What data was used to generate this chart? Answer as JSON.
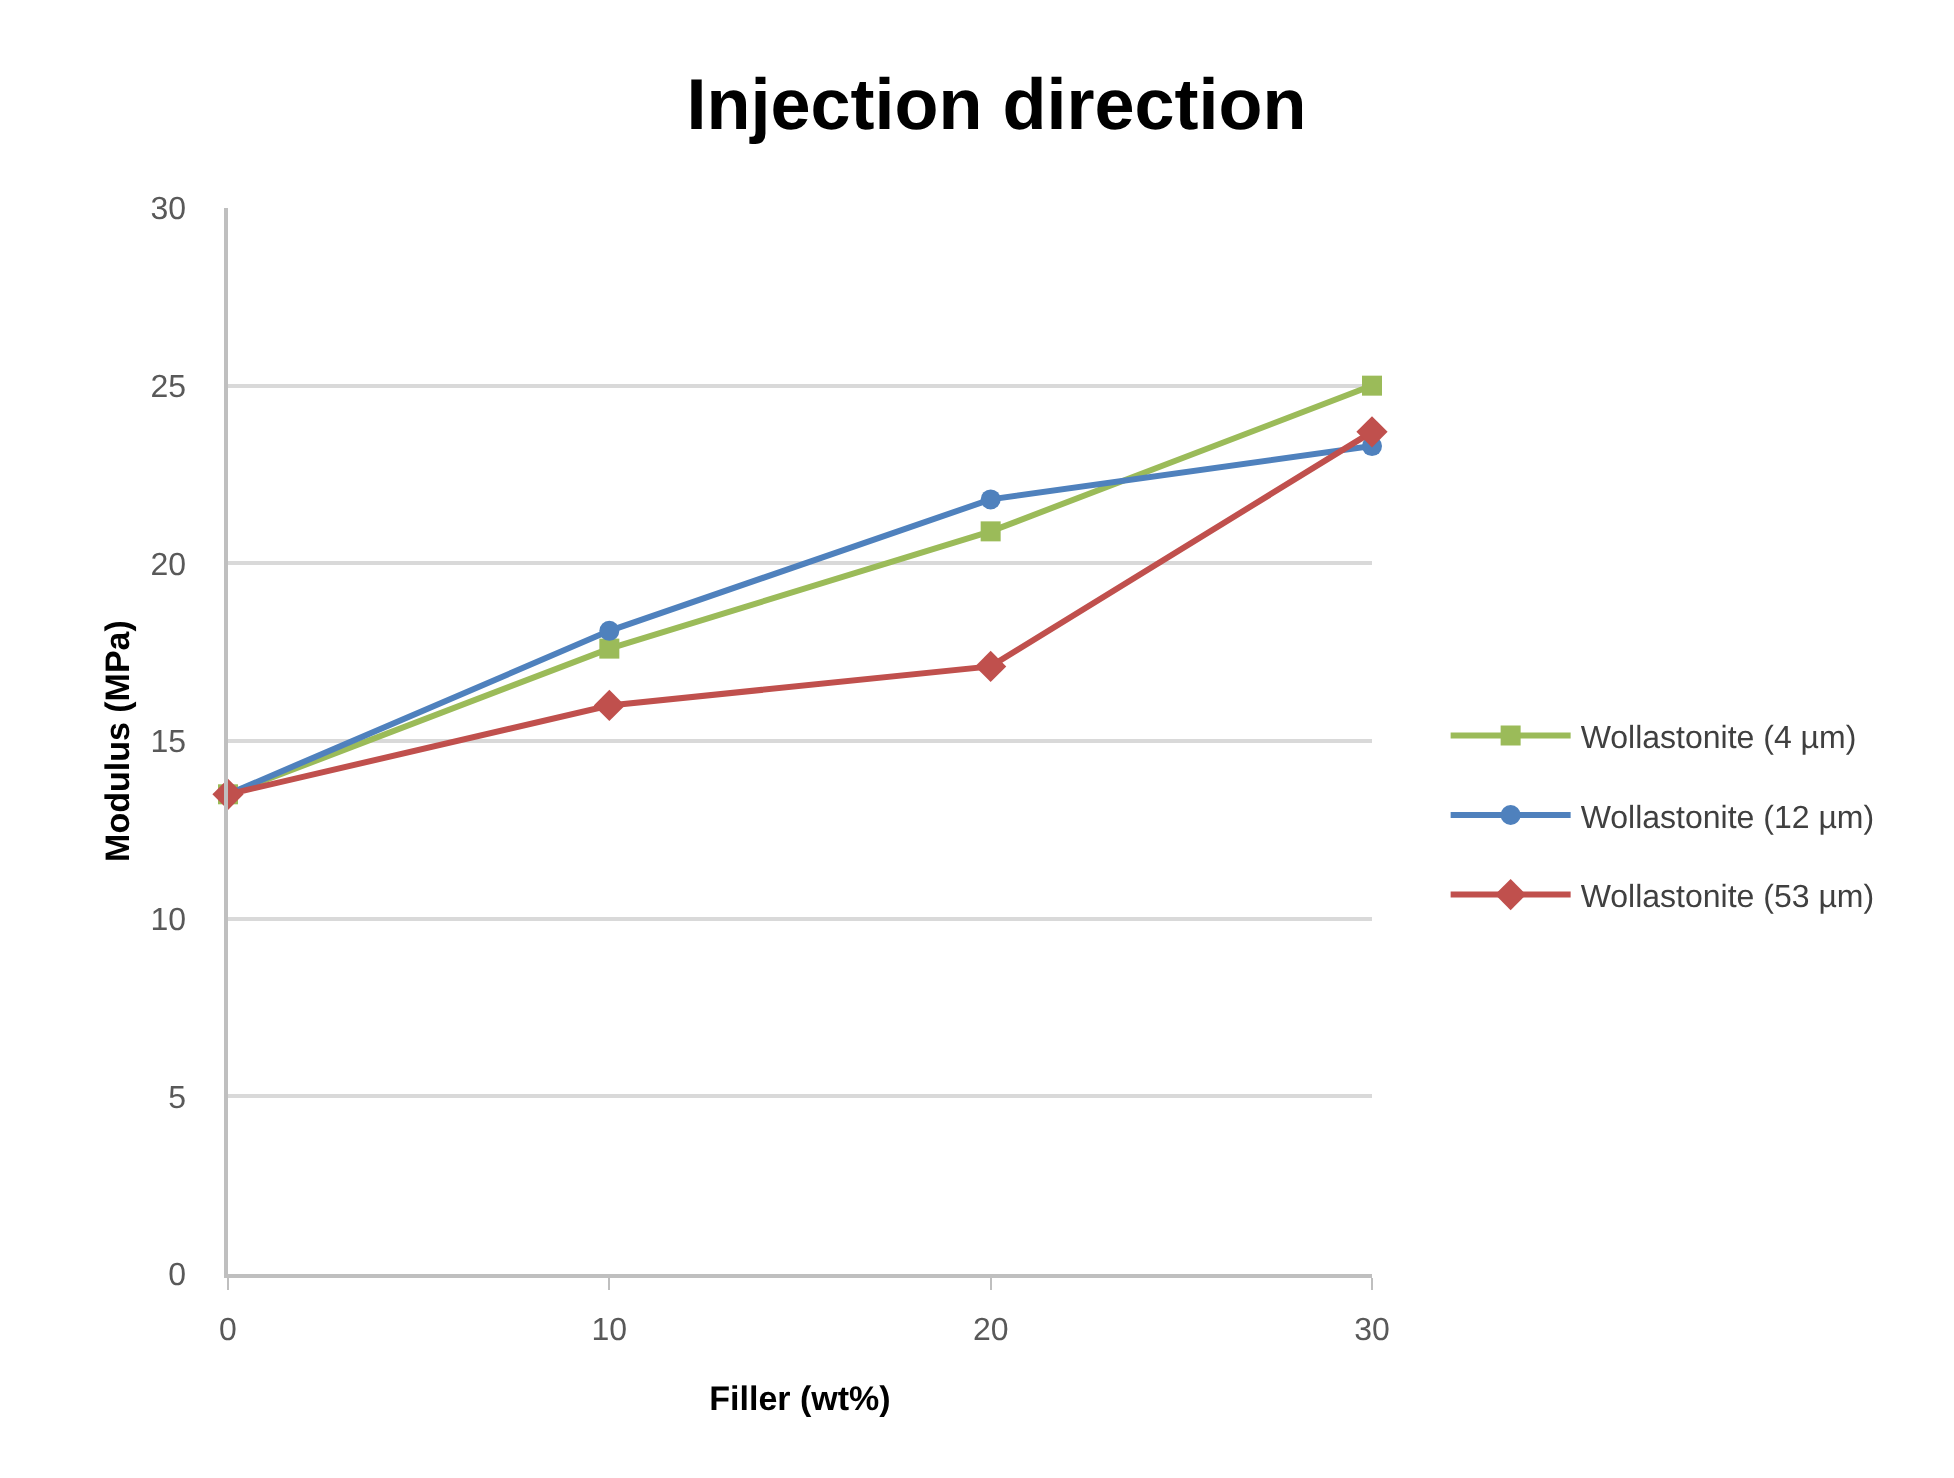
{
  "chart_data": {
    "type": "line",
    "title": "Injection direction",
    "xlabel": "Filler (wt%)",
    "ylabel": "Modulus (MPa)",
    "x": [
      0,
      10,
      20,
      30
    ],
    "series": [
      {
        "name": "Wollastonite (4 µm)",
        "color": "#9bbb59",
        "marker": "square",
        "values": [
          13.5,
          17.6,
          20.9,
          25.0
        ]
      },
      {
        "name": "Wollastonite (12 µm)",
        "color": "#4f81bd",
        "marker": "circle",
        "values": [
          13.5,
          18.1,
          21.8,
          23.3
        ]
      },
      {
        "name": "Wollastonite (53 µm)",
        "color": "#c0504d",
        "marker": "diamond",
        "values": [
          13.5,
          16.0,
          17.1,
          23.7
        ]
      }
    ],
    "xlim": [
      0,
      30
    ],
    "xticks": [
      0,
      10,
      20,
      30
    ],
    "ylim": [
      0,
      30
    ],
    "yticks": [
      0,
      5,
      10,
      15,
      20,
      25,
      30
    ],
    "grid": "y",
    "legend": "right",
    "line_style": "solid"
  }
}
